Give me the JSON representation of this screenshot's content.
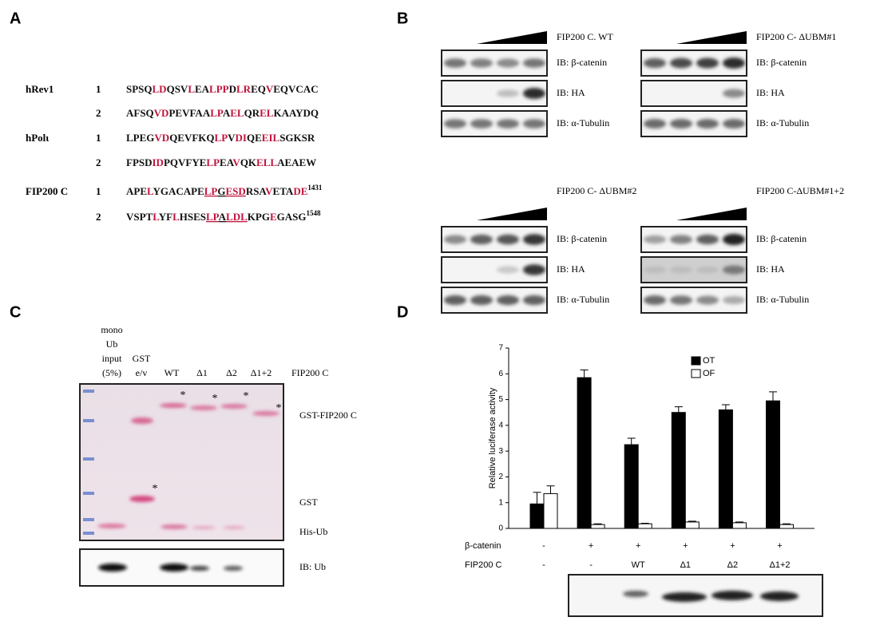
{
  "panel_a": {
    "label": "A",
    "rows": [
      {
        "name": "hRev1",
        "number": "1",
        "segments": [
          {
            "text": "SPSQ"
          },
          {
            "text": "LD",
            "color": "#c0143c"
          },
          {
            "text": "QSV"
          },
          {
            "text": "L",
            "color": "#c0143c"
          },
          {
            "text": "EA"
          },
          {
            "text": "LPP",
            "color": "#c0143c"
          },
          {
            "text": "D"
          },
          {
            "text": "LR",
            "color": "#c0143c"
          },
          {
            "text": "EQ"
          },
          {
            "text": "V",
            "color": "#c0143c"
          },
          {
            "text": "EQVCAC"
          }
        ]
      },
      {
        "number": "2",
        "segments": [
          {
            "text": "AFSQ"
          },
          {
            "text": "VD",
            "color": "#c0143c"
          },
          {
            "text": "PEVFAA"
          },
          {
            "text": "LP",
            "color": "#c0143c"
          },
          {
            "text": "A"
          },
          {
            "text": "EL",
            "color": "#c0143c"
          },
          {
            "text": "QR"
          },
          {
            "text": "EL",
            "color": "#c0143c"
          },
          {
            "text": "KAAYDQ"
          }
        ]
      },
      {
        "name": "hPolι",
        "number": "1",
        "segments": [
          {
            "text": "LPEG"
          },
          {
            "text": "VD",
            "color": "#c0143c"
          },
          {
            "text": "QEVFKQ"
          },
          {
            "text": "LP",
            "color": "#c0143c"
          },
          {
            "text": "V"
          },
          {
            "text": "DI",
            "color": "#c0143c"
          },
          {
            "text": "QE"
          },
          {
            "text": "EIL",
            "color": "#c0143c"
          },
          {
            "text": "SGKSR"
          }
        ]
      },
      {
        "number": "2",
        "segments": [
          {
            "text": "FPSD"
          },
          {
            "text": "ID",
            "color": "#c0143c"
          },
          {
            "text": "PQVFYE"
          },
          {
            "text": "LP",
            "color": "#c0143c"
          },
          {
            "text": "EA"
          },
          {
            "text": "V",
            "color": "#c0143c"
          },
          {
            "text": "QK"
          },
          {
            "text": "ELL",
            "color": "#c0143c"
          },
          {
            "text": "AEAEW"
          }
        ]
      },
      {
        "name": "FIP200 C",
        "number": "1",
        "segments": [
          {
            "text": "APE"
          },
          {
            "text": "L",
            "color": "#c0143c"
          },
          {
            "text": "YGACAPE"
          },
          {
            "text": "LP",
            "color": "#c0143c",
            "underline": true
          },
          {
            "text": "G",
            "underline": true
          },
          {
            "text": "ESD",
            "color": "#c0143c",
            "underline": true
          },
          {
            "text": "RSA"
          },
          {
            "text": "V",
            "color": "#c0143c"
          },
          {
            "text": "E"
          },
          {
            "text": "TA"
          },
          {
            "text": "DE",
            "color": "#c0143c"
          }
        ],
        "sup": "1431"
      },
      {
        "number": "2",
        "segments": [
          {
            "text": "VSPT"
          },
          {
            "text": "L",
            "color": "#c0143c"
          },
          {
            "text": "YF"
          },
          {
            "text": "L",
            "color": "#c0143c"
          },
          {
            "text": "HSES"
          },
          {
            "text": "LP",
            "color": "#c0143c",
            "underline": true
          },
          {
            "text": "A",
            "underline": true
          },
          {
            "text": "LDL",
            "color": "#c0143c",
            "underline": true
          },
          {
            "text": "KPG"
          },
          {
            "text": "E",
            "color": "#c0143c"
          },
          {
            "text": "GASG"
          }
        ],
        "sup": "1548"
      }
    ]
  },
  "panel_b": {
    "label": "B",
    "blots": [
      {
        "title": "FIP200 C. WT",
        "rows": [
          "IB: β-catenin",
          "IB: HA",
          "IB: α-Tubulin"
        ]
      },
      {
        "title": "FIP200 C- ΔUBM#1",
        "rows": [
          "IB: β-catenin",
          "IB: HA",
          "IB: α-Tubulin"
        ]
      },
      {
        "title": "FIP200 C- ΔUBM#2",
        "rows": [
          "IB: β-catenin",
          "IB: HA",
          "IB: α-Tubulin"
        ]
      },
      {
        "title": "FIP200 C-ΔUBM#1+2",
        "rows": [
          "IB: β-catenin",
          "IB: HA",
          "IB: α-Tubulin"
        ]
      }
    ]
  },
  "panel_c": {
    "label": "C",
    "lanes": [
      [
        "mono",
        "Ub",
        "input",
        "(5%)"
      ],
      [
        "GST",
        "e/v"
      ],
      [
        "WT"
      ],
      [
        "Δ1"
      ],
      [
        "Δ2"
      ],
      [
        "Δ1+2"
      ]
    ],
    "lane_group": "FIP200 C",
    "band_labels": [
      "GST-FIP200 C",
      "GST",
      "His-Ub"
    ],
    "stars": [
      "*",
      "*",
      "*",
      "*",
      "*"
    ],
    "blot_label": "IB: Ub"
  },
  "panel_d": {
    "label": "D"
  },
  "chart_data": {
    "type": "bar",
    "ylabel": "Relative luciferase activity",
    "categories": [
      "-",
      "-",
      "WT",
      "Δ1",
      "Δ2",
      "Δ1+2"
    ],
    "category_label": "FIP200 C",
    "conditions": {
      "name": "β-catenin",
      "labels": [
        "-",
        "+",
        "+",
        "+",
        "+",
        "+"
      ]
    },
    "series": [
      {
        "name": "OT",
        "color": "#000000",
        "values": [
          0.95,
          5.85,
          3.25,
          4.5,
          4.6,
          4.95
        ],
        "errors": [
          0.45,
          0.3,
          0.25,
          0.22,
          0.2,
          0.35
        ]
      },
      {
        "name": "OF",
        "color": "#ffffff",
        "values": [
          1.35,
          0.15,
          0.18,
          0.25,
          0.22,
          0.15
        ],
        "errors": [
          0.3,
          0.03,
          0.02,
          0.03,
          0.03,
          0.03
        ]
      }
    ],
    "ylim": [
      0,
      7
    ],
    "yticks": [
      0,
      1,
      2,
      3,
      4,
      5,
      6,
      7
    ],
    "legend": "top-right"
  }
}
